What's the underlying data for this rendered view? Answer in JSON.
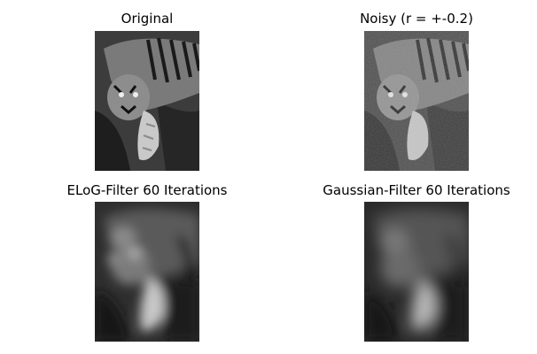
{
  "figure": {
    "panels": [
      {
        "title": "Original",
        "image": "tiger-grayscale-original"
      },
      {
        "title": "Noisy (r = +-0.2)",
        "image": "tiger-grayscale-noisy"
      },
      {
        "title": "ELoG-Filter 60 Iterations",
        "image": "tiger-grayscale-elog-filtered"
      },
      {
        "title": "Gaussian-Filter 60 Iterations",
        "image": "tiger-grayscale-gaussian-filtered"
      }
    ]
  }
}
